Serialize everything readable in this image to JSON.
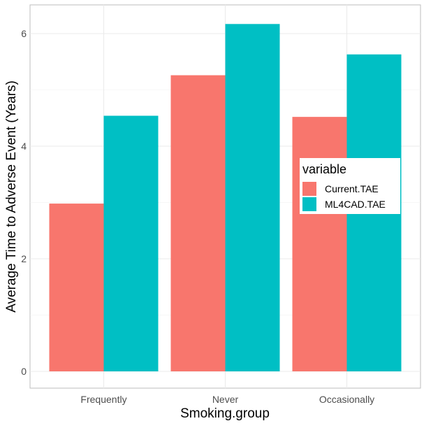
{
  "chart_data": {
    "type": "bar",
    "categories": [
      "Frequently",
      "Never",
      "Occasionally"
    ],
    "series": [
      {
        "name": "Current.TAE",
        "color": "#F8766D",
        "values": [
          2.98,
          5.26,
          4.52
        ]
      },
      {
        "name": "ML4CAD.TAE",
        "color": "#00BFC4",
        "values": [
          4.54,
          6.17,
          5.63
        ]
      }
    ],
    "xlabel": "Smoking.group",
    "ylabel": "Average Time to Adverse Event (Years)",
    "yticks": [
      0,
      2,
      4,
      6
    ],
    "ylim": [
      0,
      6.4
    ],
    "grid": true,
    "legend": {
      "title": "variable",
      "position": "right-inside"
    }
  }
}
